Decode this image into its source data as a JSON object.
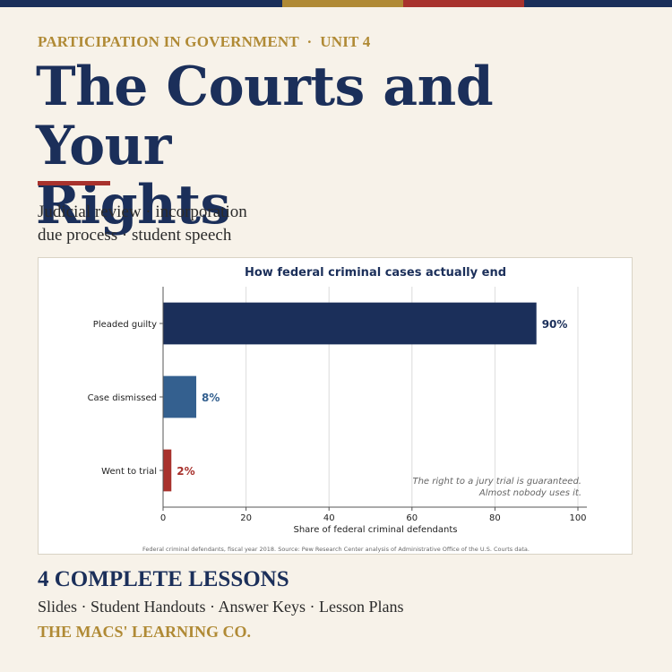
{
  "colors": {
    "navy": "#1b2f5a",
    "gold": "#b08a35",
    "red": "#a8322d",
    "steel": "#34608f",
    "background": "#f7f2e9",
    "text": "#2b2b2b"
  },
  "header": {
    "kicker": "PARTICIPATION IN GOVERNMENT  ·  UNIT 4",
    "title_line1": "The Courts and Your",
    "title_line2": "Rights",
    "subtitle_line1": "Judicial review · incorporation",
    "subtitle_line2": "due process · student speech"
  },
  "chart_data": {
    "type": "bar",
    "orientation": "horizontal",
    "title": "How federal criminal cases actually end",
    "categories": [
      "Pleaded guilty",
      "Case dismissed",
      "Went to trial"
    ],
    "values": [
      90,
      8,
      2
    ],
    "value_labels": [
      "90%",
      "8%",
      "2%"
    ],
    "bar_colors": [
      "#1b2f5a",
      "#34608f",
      "#a8322d"
    ],
    "xlabel": "Share of federal criminal defendants",
    "ylabel": "",
    "xlim": [
      0,
      100
    ],
    "xticks": [
      0,
      20,
      40,
      60,
      80,
      100
    ],
    "grid": "vertical",
    "annotation_line1": "The right to a jury trial is guaranteed.",
    "annotation_line2": "Almost nobody uses it.",
    "source_note": "Federal criminal defendants, fiscal year 2018. Source: Pew Research Center analysis of Administrative Office of the U.S. Courts data."
  },
  "footer": {
    "lessons_title": "4 COMPLETE LESSONS",
    "lessons_sub": "Slides · Student Handouts · Answer Keys · Lesson Plans",
    "brand": "THE MACS' LEARNING CO."
  }
}
